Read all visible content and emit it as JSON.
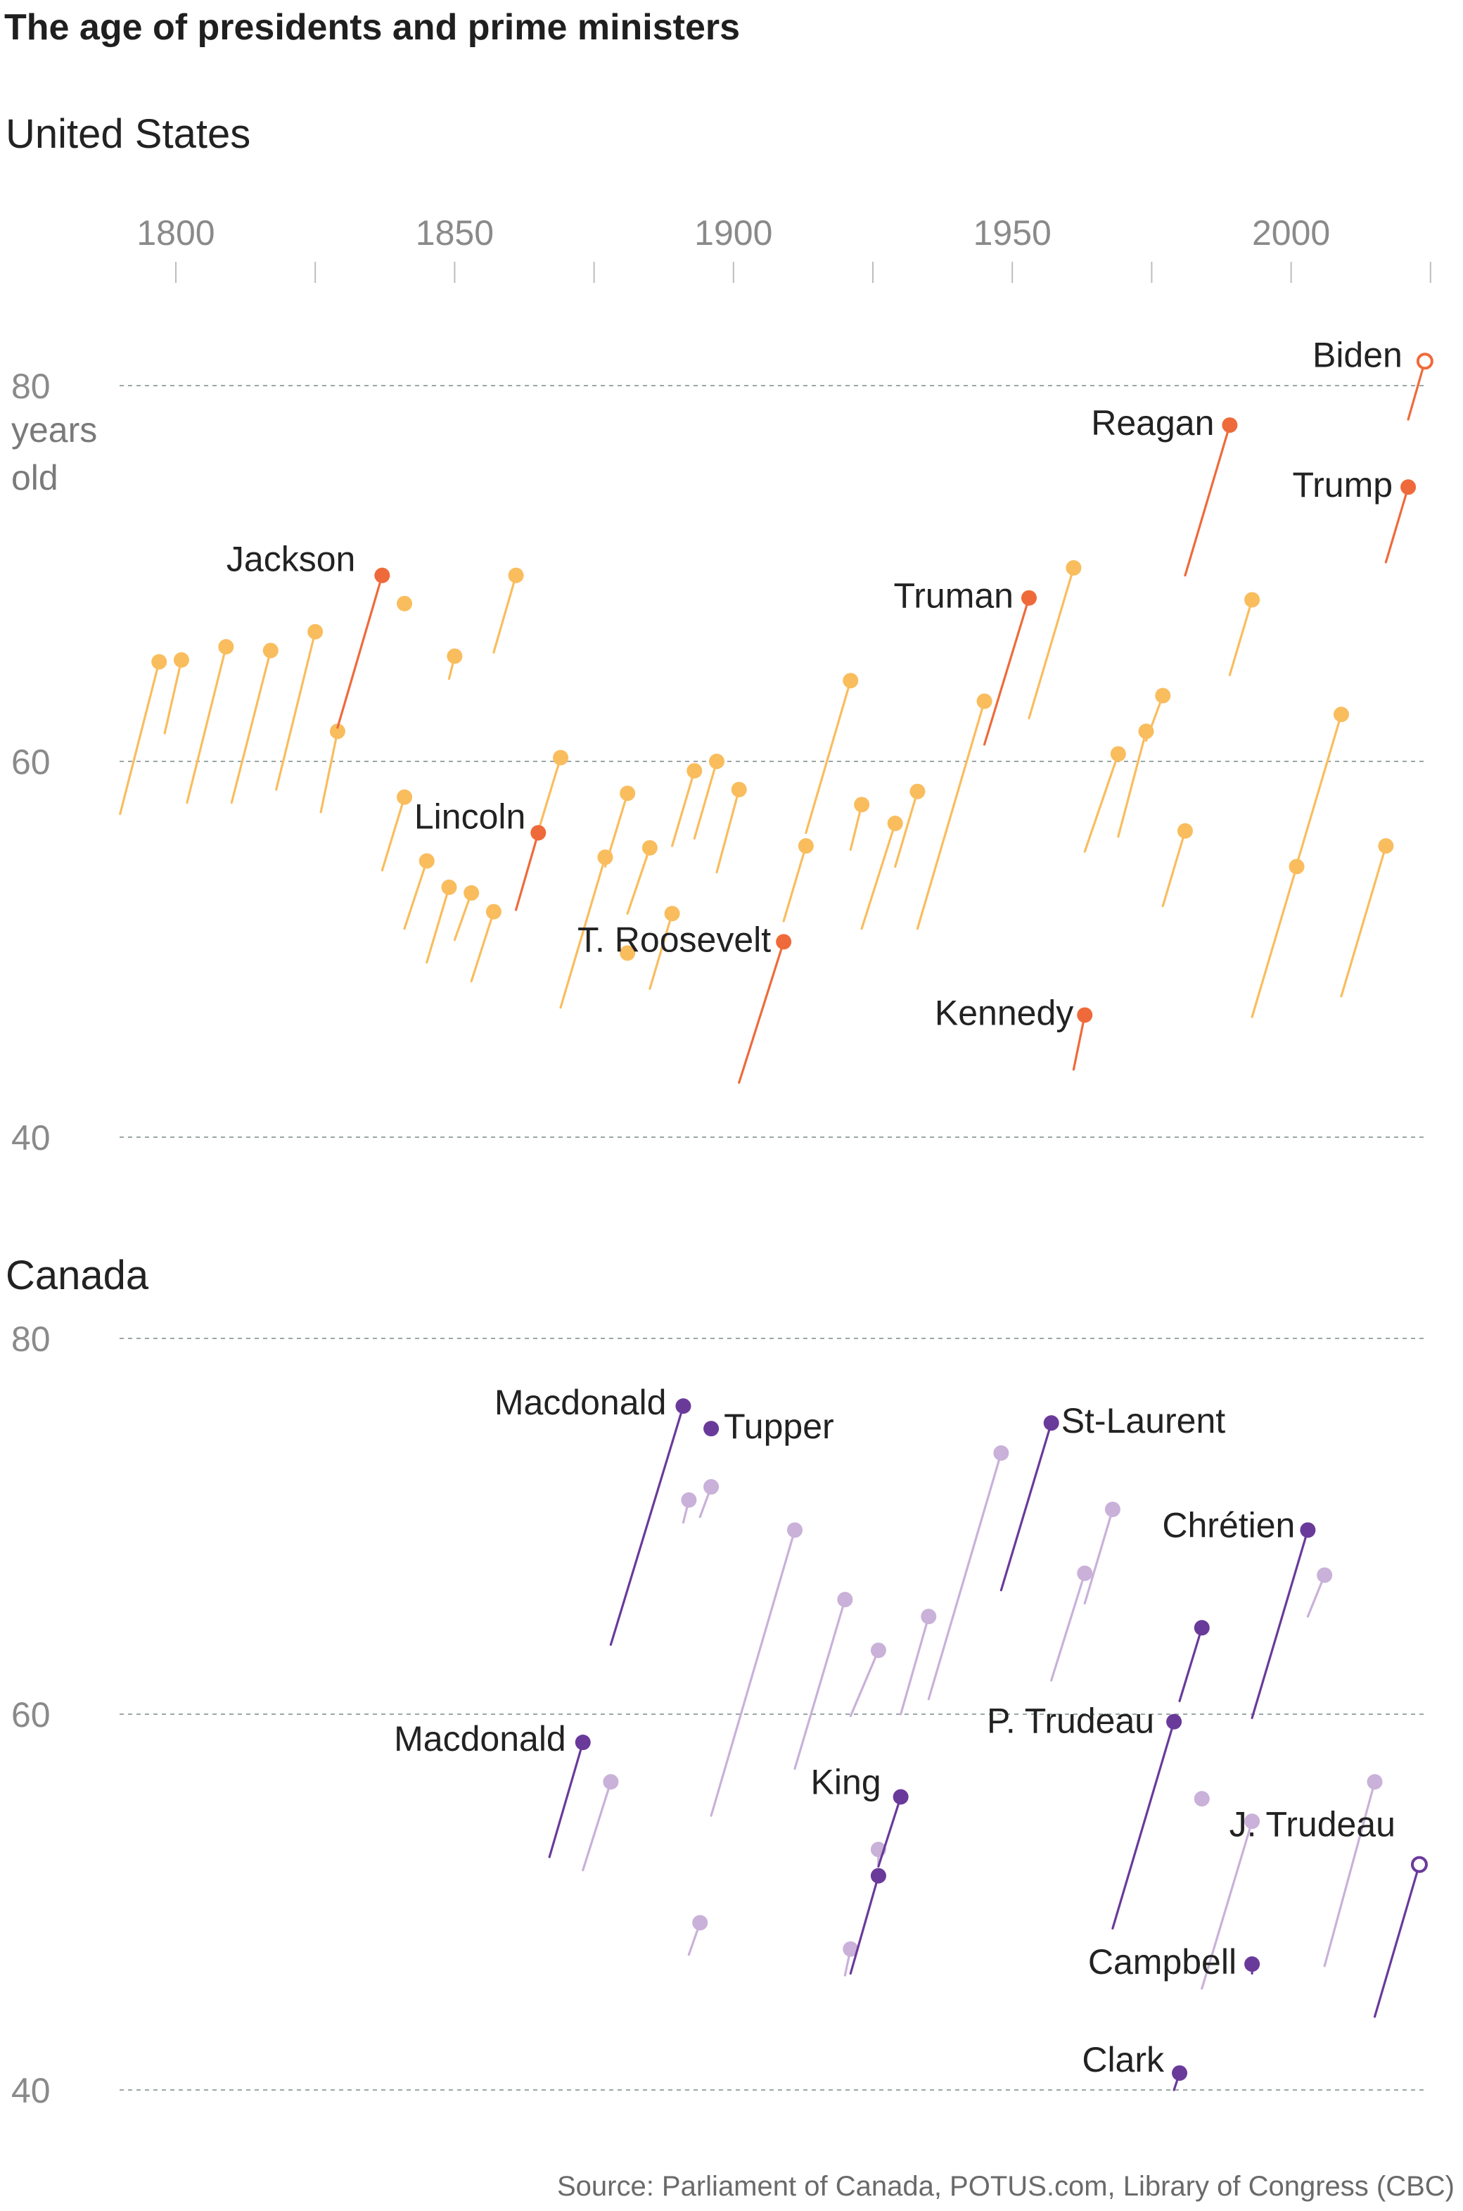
{
  "title": "The age of presidents and prime ministers",
  "source": "Source: Parliament of Canada, POTUS.com, Library of Congress (CBC)",
  "colors": {
    "us_highlight": "#ef6a3a",
    "us_other": "#f9bd5e",
    "ca_highlight": "#6a3a9a",
    "ca_other": "#c9b1d9",
    "grid": "#9aa7a7",
    "axis_text": "#8a8a8a"
  },
  "chart_data": [
    {
      "type": "line",
      "panel": "United States",
      "title": "United States",
      "x_axis": {
        "ticks": [
          1800,
          1850,
          1900,
          1950,
          2000
        ],
        "range": [
          1790,
          2025
        ]
      },
      "y_axis": {
        "range": [
          40,
          82
        ],
        "gridlines": [
          40,
          60,
          80
        ],
        "tick_labels": [
          "40",
          "60",
          "80"
        ],
        "unit_label": [
          "years",
          "old"
        ]
      },
      "series": [
        {
          "name": "",
          "start_year": 1790,
          "start_age": 57.2,
          "end_year": 1797,
          "end_age": 65.3,
          "highlight": false
        },
        {
          "name": "",
          "start_year": 1798,
          "start_age": 61.5,
          "end_year": 1801,
          "end_age": 65.4,
          "highlight": false
        },
        {
          "name": "",
          "start_year": 1802,
          "start_age": 57.8,
          "end_year": 1809,
          "end_age": 66.1,
          "highlight": false
        },
        {
          "name": "",
          "start_year": 1810,
          "start_age": 57.8,
          "end_year": 1817,
          "end_age": 65.9,
          "highlight": false
        },
        {
          "name": "",
          "start_year": 1818,
          "start_age": 58.5,
          "end_year": 1825,
          "end_age": 66.9,
          "highlight": false
        },
        {
          "name": "",
          "start_year": 1826,
          "start_age": 57.3,
          "end_year": 1829,
          "end_age": 61.6,
          "highlight": false
        },
        {
          "name": "Jackson",
          "start_year": 1829,
          "start_age": 61.8,
          "end_year": 1837,
          "end_age": 69.9,
          "highlight": true
        },
        {
          "name": "",
          "start_year": 1837,
          "start_age": 54.2,
          "end_year": 1841,
          "end_age": 58.1,
          "highlight": false
        },
        {
          "name": "",
          "start_year": 1841,
          "start_age": 68.1,
          "end_year": 1841,
          "end_age": 68.4,
          "highlight": false
        },
        {
          "name": "",
          "start_year": 1841,
          "start_age": 51.1,
          "end_year": 1845,
          "end_age": 54.7,
          "highlight": false
        },
        {
          "name": "",
          "start_year": 1845,
          "start_age": 49.3,
          "end_year": 1849,
          "end_age": 53.3,
          "highlight": false
        },
        {
          "name": "",
          "start_year": 1849,
          "start_age": 64.4,
          "end_year": 1850,
          "end_age": 65.6,
          "highlight": false
        },
        {
          "name": "",
          "start_year": 1850,
          "start_age": 50.5,
          "end_year": 1853,
          "end_age": 53.0,
          "highlight": false
        },
        {
          "name": "",
          "start_year": 1853,
          "start_age": 48.3,
          "end_year": 1857,
          "end_age": 52.0,
          "highlight": false
        },
        {
          "name": "",
          "start_year": 1857,
          "start_age": 65.8,
          "end_year": 1861,
          "end_age": 69.9,
          "highlight": false
        },
        {
          "name": "Lincoln",
          "start_year": 1861,
          "start_age": 52.1,
          "end_year": 1865,
          "end_age": 56.2,
          "highlight": true
        },
        {
          "name": "",
          "start_year": 1865,
          "start_age": 56.3,
          "end_year": 1869,
          "end_age": 60.2,
          "highlight": false
        },
        {
          "name": "",
          "start_year": 1869,
          "start_age": 46.9,
          "end_year": 1877,
          "end_age": 54.9,
          "highlight": false
        },
        {
          "name": "",
          "start_year": 1877,
          "start_age": 54.4,
          "end_year": 1881,
          "end_age": 58.3,
          "highlight": false
        },
        {
          "name": "",
          "start_year": 1881,
          "start_age": 49.6,
          "end_year": 1881,
          "end_age": 49.8,
          "highlight": false
        },
        {
          "name": "",
          "start_year": 1881,
          "start_age": 51.9,
          "end_year": 1885,
          "end_age": 55.4,
          "highlight": false
        },
        {
          "name": "",
          "start_year": 1885,
          "start_age": 47.9,
          "end_year": 1889,
          "end_age": 51.9,
          "highlight": false
        },
        {
          "name": "",
          "start_year": 1889,
          "start_age": 55.5,
          "end_year": 1893,
          "end_age": 59.5,
          "highlight": false
        },
        {
          "name": "",
          "start_year": 1893,
          "start_age": 55.9,
          "end_year": 1897,
          "end_age": 60.0,
          "highlight": false
        },
        {
          "name": "",
          "start_year": 1897,
          "start_age": 54.1,
          "end_year": 1901,
          "end_age": 58.5,
          "highlight": false
        },
        {
          "name": "T. Roosevelt",
          "start_year": 1901,
          "start_age": 42.9,
          "end_year": 1909,
          "end_age": 50.4,
          "highlight": true
        },
        {
          "name": "",
          "start_year": 1909,
          "start_age": 51.5,
          "end_year": 1913,
          "end_age": 55.5,
          "highlight": false
        },
        {
          "name": "",
          "start_year": 1913,
          "start_age": 56.2,
          "end_year": 1921,
          "end_age": 64.3,
          "highlight": false
        },
        {
          "name": "",
          "start_year": 1921,
          "start_age": 55.3,
          "end_year": 1923,
          "end_age": 57.7,
          "highlight": false
        },
        {
          "name": "",
          "start_year": 1923,
          "start_age": 51.1,
          "end_year": 1929,
          "end_age": 56.7,
          "highlight": false
        },
        {
          "name": "",
          "start_year": 1929,
          "start_age": 54.4,
          "end_year": 1933,
          "end_age": 58.4,
          "highlight": false
        },
        {
          "name": "",
          "start_year": 1933,
          "start_age": 51.1,
          "end_year": 1945,
          "end_age": 63.2,
          "highlight": false
        },
        {
          "name": "Truman",
          "start_year": 1945,
          "start_age": 60.9,
          "end_year": 1953,
          "end_age": 68.7,
          "highlight": true
        },
        {
          "name": "",
          "start_year": 1953,
          "start_age": 62.3,
          "end_year": 1961,
          "end_age": 70.3,
          "highlight": false
        },
        {
          "name": "Kennedy",
          "start_year": 1961,
          "start_age": 43.6,
          "end_year": 1963,
          "end_age": 46.5,
          "highlight": true
        },
        {
          "name": "",
          "start_year": 1963,
          "start_age": 55.2,
          "end_year": 1969,
          "end_age": 60.4,
          "highlight": false
        },
        {
          "name": "",
          "start_year": 1969,
          "start_age": 56.0,
          "end_year": 1974,
          "end_age": 61.6,
          "highlight": false
        },
        {
          "name": "",
          "start_year": 1974,
          "start_age": 61.1,
          "end_year": 1977,
          "end_age": 63.5,
          "highlight": false
        },
        {
          "name": "",
          "start_year": 1977,
          "start_age": 52.3,
          "end_year": 1981,
          "end_age": 56.3,
          "highlight": false
        },
        {
          "name": "Reagan",
          "start_year": 1981,
          "start_age": 69.9,
          "end_year": 1989,
          "end_age": 77.9,
          "highlight": true
        },
        {
          "name": "",
          "start_year": 1989,
          "start_age": 64.6,
          "end_year": 1993,
          "end_age": 68.6,
          "highlight": false
        },
        {
          "name": "",
          "start_year": 1993,
          "start_age": 46.4,
          "end_year": 2001,
          "end_age": 54.4,
          "highlight": false
        },
        {
          "name": "",
          "start_year": 2001,
          "start_age": 54.5,
          "end_year": 2009,
          "end_age": 62.5,
          "highlight": false
        },
        {
          "name": "",
          "start_year": 2009,
          "start_age": 47.5,
          "end_year": 2017,
          "end_age": 55.5,
          "highlight": false
        },
        {
          "name": "Trump",
          "start_year": 2017,
          "start_age": 70.6,
          "end_year": 2021,
          "end_age": 74.6,
          "highlight": true
        },
        {
          "name": "Biden",
          "start_year": 2021,
          "start_age": 78.2,
          "end_year": 2024,
          "end_age": 81.3,
          "highlight": true,
          "ongoing": true
        }
      ]
    },
    {
      "type": "line",
      "panel": "Canada",
      "title": "Canada",
      "x_axis": {
        "range": [
          1790,
          2025
        ]
      },
      "y_axis": {
        "range": [
          40,
          80
        ],
        "gridlines": [
          40,
          60,
          80
        ],
        "tick_labels": [
          "40",
          "60",
          "80"
        ]
      },
      "series": [
        {
          "name": "Macdonald",
          "start_year": 1867,
          "start_age": 52.4,
          "end_year": 1873,
          "end_age": 58.5,
          "highlight": true
        },
        {
          "name": "",
          "start_year": 1873,
          "start_age": 51.7,
          "end_year": 1878,
          "end_age": 56.4,
          "highlight": false
        },
        {
          "name": "Macdonald",
          "start_year": 1878,
          "start_age": 63.7,
          "end_year": 1891,
          "end_age": 76.4,
          "highlight": true
        },
        {
          "name": "",
          "start_year": 1891,
          "start_age": 70.2,
          "end_year": 1892,
          "end_age": 71.4,
          "highlight": false
        },
        {
          "name": "",
          "start_year": 1892,
          "start_age": 47.2,
          "end_year": 1894,
          "end_age": 48.9,
          "highlight": false
        },
        {
          "name": "",
          "start_year": 1894,
          "start_age": 70.5,
          "end_year": 1896,
          "end_age": 72.1,
          "highlight": false
        },
        {
          "name": "Tupper",
          "start_year": 1896,
          "start_age": 74.9,
          "end_year": 1896,
          "end_age": 75.2,
          "highlight": true
        },
        {
          "name": "",
          "start_year": 1896,
          "start_age": 54.6,
          "end_year": 1911,
          "end_age": 69.8,
          "highlight": false
        },
        {
          "name": "",
          "start_year": 1911,
          "start_age": 57.1,
          "end_year": 1920,
          "end_age": 66.1,
          "highlight": false
        },
        {
          "name": "",
          "start_year": 1920,
          "start_age": 46.1,
          "end_year": 1921,
          "end_age": 47.5,
          "highlight": false
        },
        {
          "name": "",
          "start_year": 1921,
          "start_age": 59.9,
          "end_year": 1926,
          "end_age": 63.4,
          "highlight": false
        },
        {
          "name": "",
          "start_year": 1921,
          "start_age": 46.2,
          "end_year": 1926,
          "end_age": 51.4,
          "highlight": true
        },
        {
          "name": "",
          "start_year": 1926,
          "start_age": 52.0,
          "end_year": 1926,
          "end_age": 52.8,
          "highlight": false
        },
        {
          "name": "King",
          "start_year": 1926,
          "start_age": 51.9,
          "end_year": 1930,
          "end_age": 55.6,
          "highlight": true
        },
        {
          "name": "",
          "start_year": 1930,
          "start_age": 60.0,
          "end_year": 1935,
          "end_age": 65.2,
          "highlight": false
        },
        {
          "name": "",
          "start_year": 1935,
          "start_age": 60.8,
          "end_year": 1948,
          "end_age": 73.9,
          "highlight": false
        },
        {
          "name": "St-Laurent",
          "start_year": 1948,
          "start_age": 66.6,
          "end_year": 1957,
          "end_age": 75.5,
          "highlight": true
        },
        {
          "name": "",
          "start_year": 1957,
          "start_age": 61.8,
          "end_year": 1963,
          "end_age": 67.5,
          "highlight": false
        },
        {
          "name": "",
          "start_year": 1963,
          "start_age": 65.9,
          "end_year": 1968,
          "end_age": 70.9,
          "highlight": false
        },
        {
          "name": "P. Trudeau",
          "start_year": 1968,
          "start_age": 48.6,
          "end_year": 1979,
          "end_age": 59.6,
          "highlight": true
        },
        {
          "name": "Clark",
          "start_year": 1979,
          "start_age": 40.0,
          "end_year": 1980,
          "end_age": 40.9,
          "highlight": true
        },
        {
          "name": "",
          "start_year": 1980,
          "start_age": 60.7,
          "end_year": 1984,
          "end_age": 64.6,
          "highlight": true
        },
        {
          "name": "",
          "start_year": 1984,
          "start_age": 55.3,
          "end_year": 1984,
          "end_age": 55.5,
          "highlight": false
        },
        {
          "name": "",
          "start_year": 1984,
          "start_age": 45.4,
          "end_year": 1993,
          "end_age": 54.3,
          "highlight": false
        },
        {
          "name": "Campbell",
          "start_year": 1993,
          "start_age": 46.2,
          "end_year": 1993,
          "end_age": 46.7,
          "highlight": true
        },
        {
          "name": "Chrétien",
          "start_year": 1993,
          "start_age": 59.8,
          "end_year": 2003,
          "end_age": 69.8,
          "highlight": true
        },
        {
          "name": "",
          "start_year": 2003,
          "start_age": 65.2,
          "end_year": 2006,
          "end_age": 67.4,
          "highlight": false
        },
        {
          "name": "",
          "start_year": 2006,
          "start_age": 46.6,
          "end_year": 2015,
          "end_age": 56.4,
          "highlight": false
        },
        {
          "name": "J. Trudeau",
          "start_year": 2015,
          "start_age": 43.9,
          "end_year": 2023,
          "end_age": 52.0,
          "highlight": true,
          "ongoing": true
        }
      ]
    }
  ]
}
